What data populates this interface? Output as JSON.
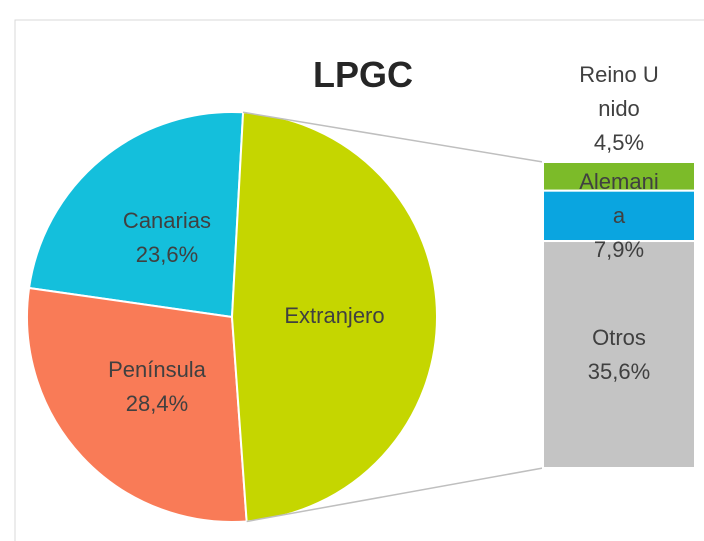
{
  "chart_data": {
    "type": "pie-of-bar",
    "title": "LPGC",
    "categories": [
      "Canarias",
      "Península",
      "Extranjero"
    ],
    "values": [
      23.6,
      28.4,
      48
    ],
    "value_labels": [
      "23,6%",
      "28,4%",
      null
    ],
    "colors": [
      "#14bfdc",
      "#f97b57",
      "#c5d600"
    ],
    "bar": {
      "categories": [
        "Reino Unido",
        "Alemania",
        "Otros"
      ],
      "values": [
        4.5,
        7.9,
        35.6
      ],
      "value_labels": [
        "4,5%",
        "7,9%",
        "35,6%"
      ],
      "colors": [
        "#7cbb29",
        "#0aa5e0",
        "#c4c4c4"
      ]
    }
  }
}
